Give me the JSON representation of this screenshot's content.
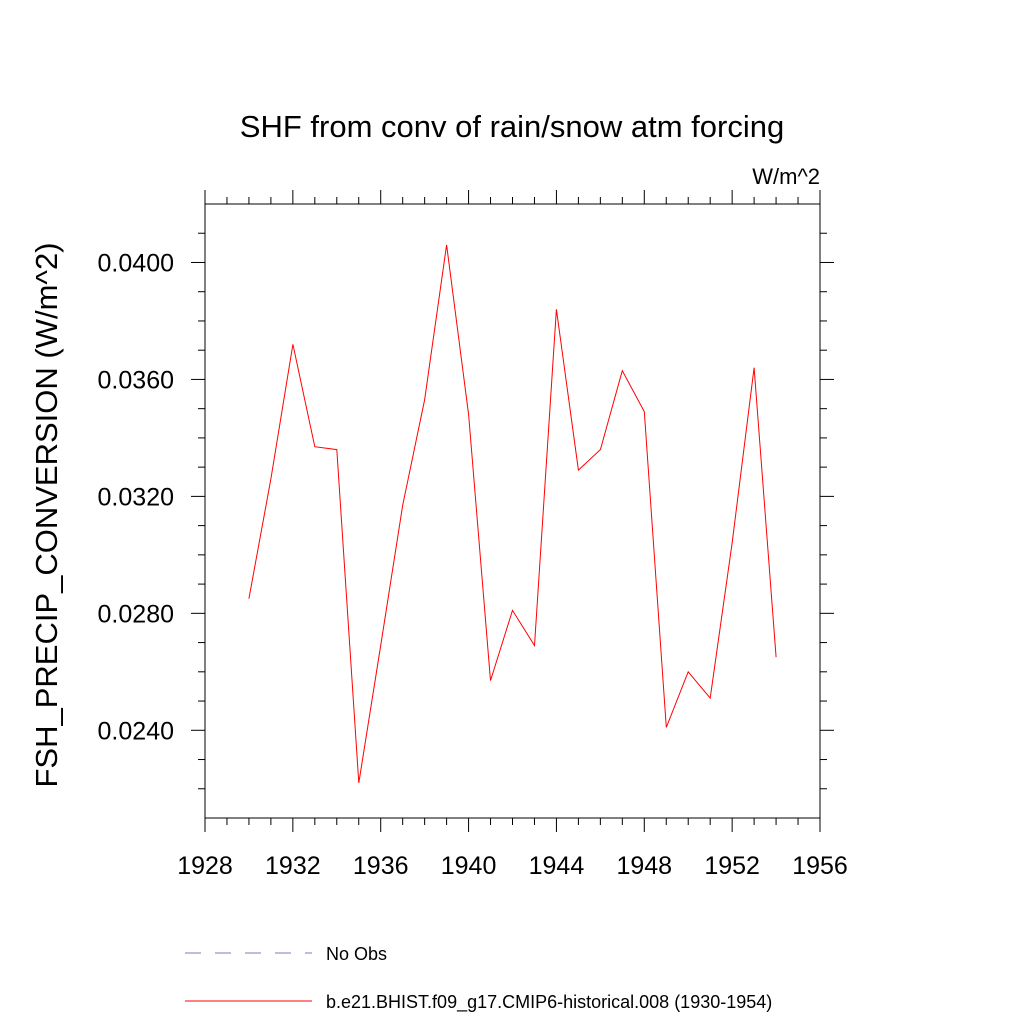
{
  "chart_data": {
    "type": "line",
    "title": "SHF from conv of rain/snow atm forcing",
    "units_label": "W/m^2",
    "ylabel": "FSH_PRECIP_CONVERSION  (W/m^2)",
    "xlabel": "",
    "xlim": [
      1928,
      1956
    ],
    "ylim": [
      0.021,
      0.042
    ],
    "x_ticks": [
      "1928",
      "1932",
      "1936",
      "1940",
      "1944",
      "1948",
      "1952",
      "1956"
    ],
    "y_ticks": [
      "0.0240",
      "0.0280",
      "0.0320",
      "0.0360",
      "0.0400"
    ],
    "series": [
      {
        "name": "b.e21.BHIST.f09_g17.CMIP6-historical.008 (1930-1954)",
        "color": "#ff0000",
        "x": [
          1930,
          1931,
          1932,
          1933,
          1934,
          1935,
          1936,
          1937,
          1938,
          1939,
          1940,
          1941,
          1942,
          1943,
          1944,
          1945,
          1946,
          1947,
          1948,
          1949,
          1950,
          1951,
          1952,
          1953,
          1954
        ],
        "y": [
          0.0285,
          0.0326,
          0.0372,
          0.0337,
          0.0336,
          0.0222,
          0.0269,
          0.0317,
          0.0353,
          0.0406,
          0.0348,
          0.0257,
          0.0281,
          0.0269,
          0.0384,
          0.0329,
          0.0336,
          0.0363,
          0.0349,
          0.0241,
          0.026,
          0.0251,
          0.0304,
          0.0364,
          0.0265
        ]
      }
    ],
    "legend": [
      {
        "label": "No Obs",
        "color": "#7b7bbd",
        "dash": true
      },
      {
        "label": "b.e21.BHIST.f09_g17.CMIP6-historical.008 (1930-1954)",
        "color": "#ff0000",
        "dash": false
      }
    ],
    "legend_position": "bottom",
    "grid": false
  }
}
